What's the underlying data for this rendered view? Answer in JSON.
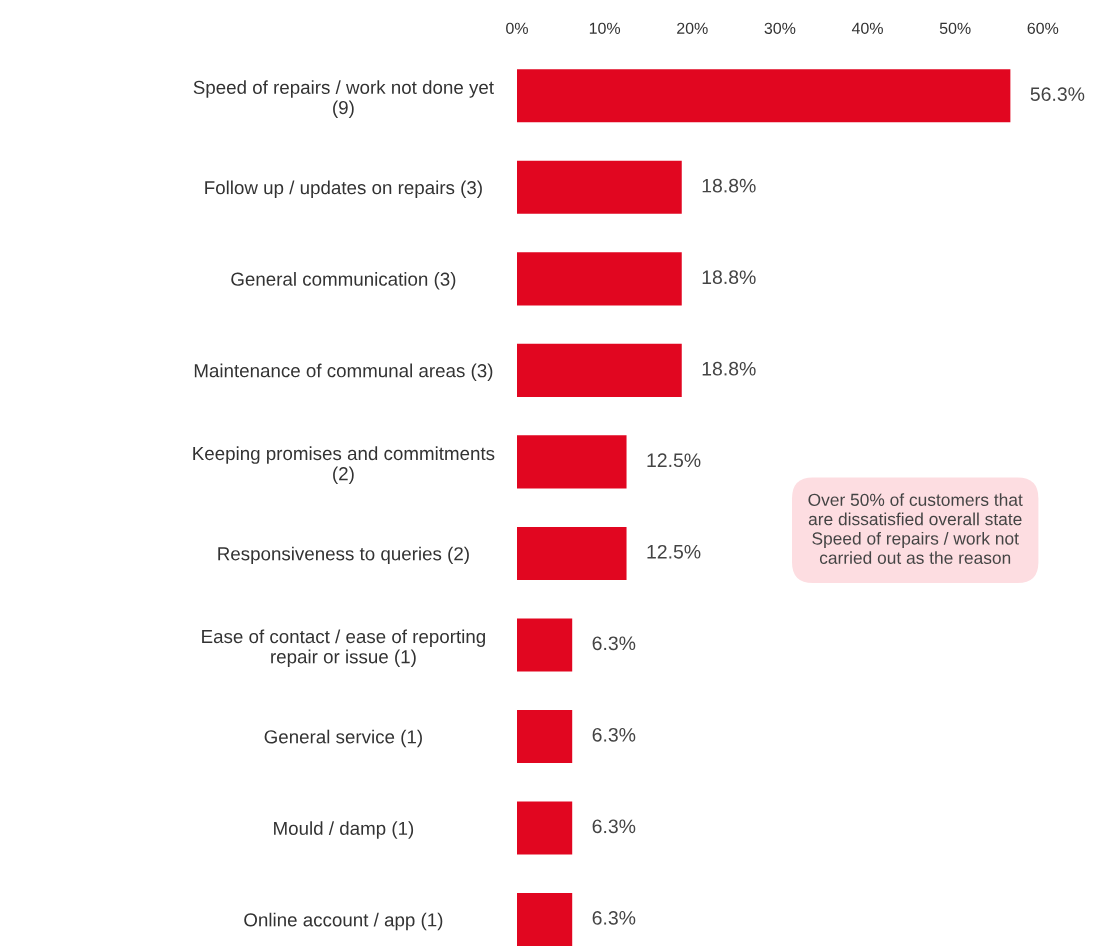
{
  "chart_data": {
    "type": "bar",
    "orientation": "horizontal",
    "categories": [
      "Speed of repairs / work not done yet\n(9)",
      "Follow up / updates on repairs (3)",
      "General communication (3)",
      "Maintenance of communal areas (3)",
      "Keeping promises and commitments\n(2)",
      "Responsiveness to queries (2)",
      "Ease of contact / ease of reporting\nrepair or issue (1)",
      "General service (1)",
      "Mould / damp (1)",
      "Online account / app (1)"
    ],
    "values": [
      56.3,
      18.8,
      18.8,
      18.8,
      12.5,
      12.5,
      6.3,
      6.3,
      6.3,
      6.3
    ],
    "color": "#e10620",
    "value_labels": [
      "56.3%",
      "18.8%",
      "18.8%",
      "18.8%",
      "12.5%",
      "12.5%",
      "6.3%",
      "6.3%",
      "6.3%",
      "6.3%"
    ],
    "xlim": [
      0,
      60
    ],
    "xticks": [
      {
        "value": 0,
        "label": "0%"
      },
      {
        "value": 10,
        "label": "10%"
      },
      {
        "value": 20,
        "label": "20%"
      },
      {
        "value": 30,
        "label": "30%"
      },
      {
        "value": 40,
        "label": "40%"
      },
      {
        "value": 50,
        "label": "50%"
      },
      {
        "value": 60,
        "label": "60%"
      }
    ],
    "grid": false,
    "legend": false,
    "annotations": [
      "Over 50% of customers that\nare dissatisfied overall state\nSpeed of repairs / work not\ncarried out as the reason"
    ]
  }
}
